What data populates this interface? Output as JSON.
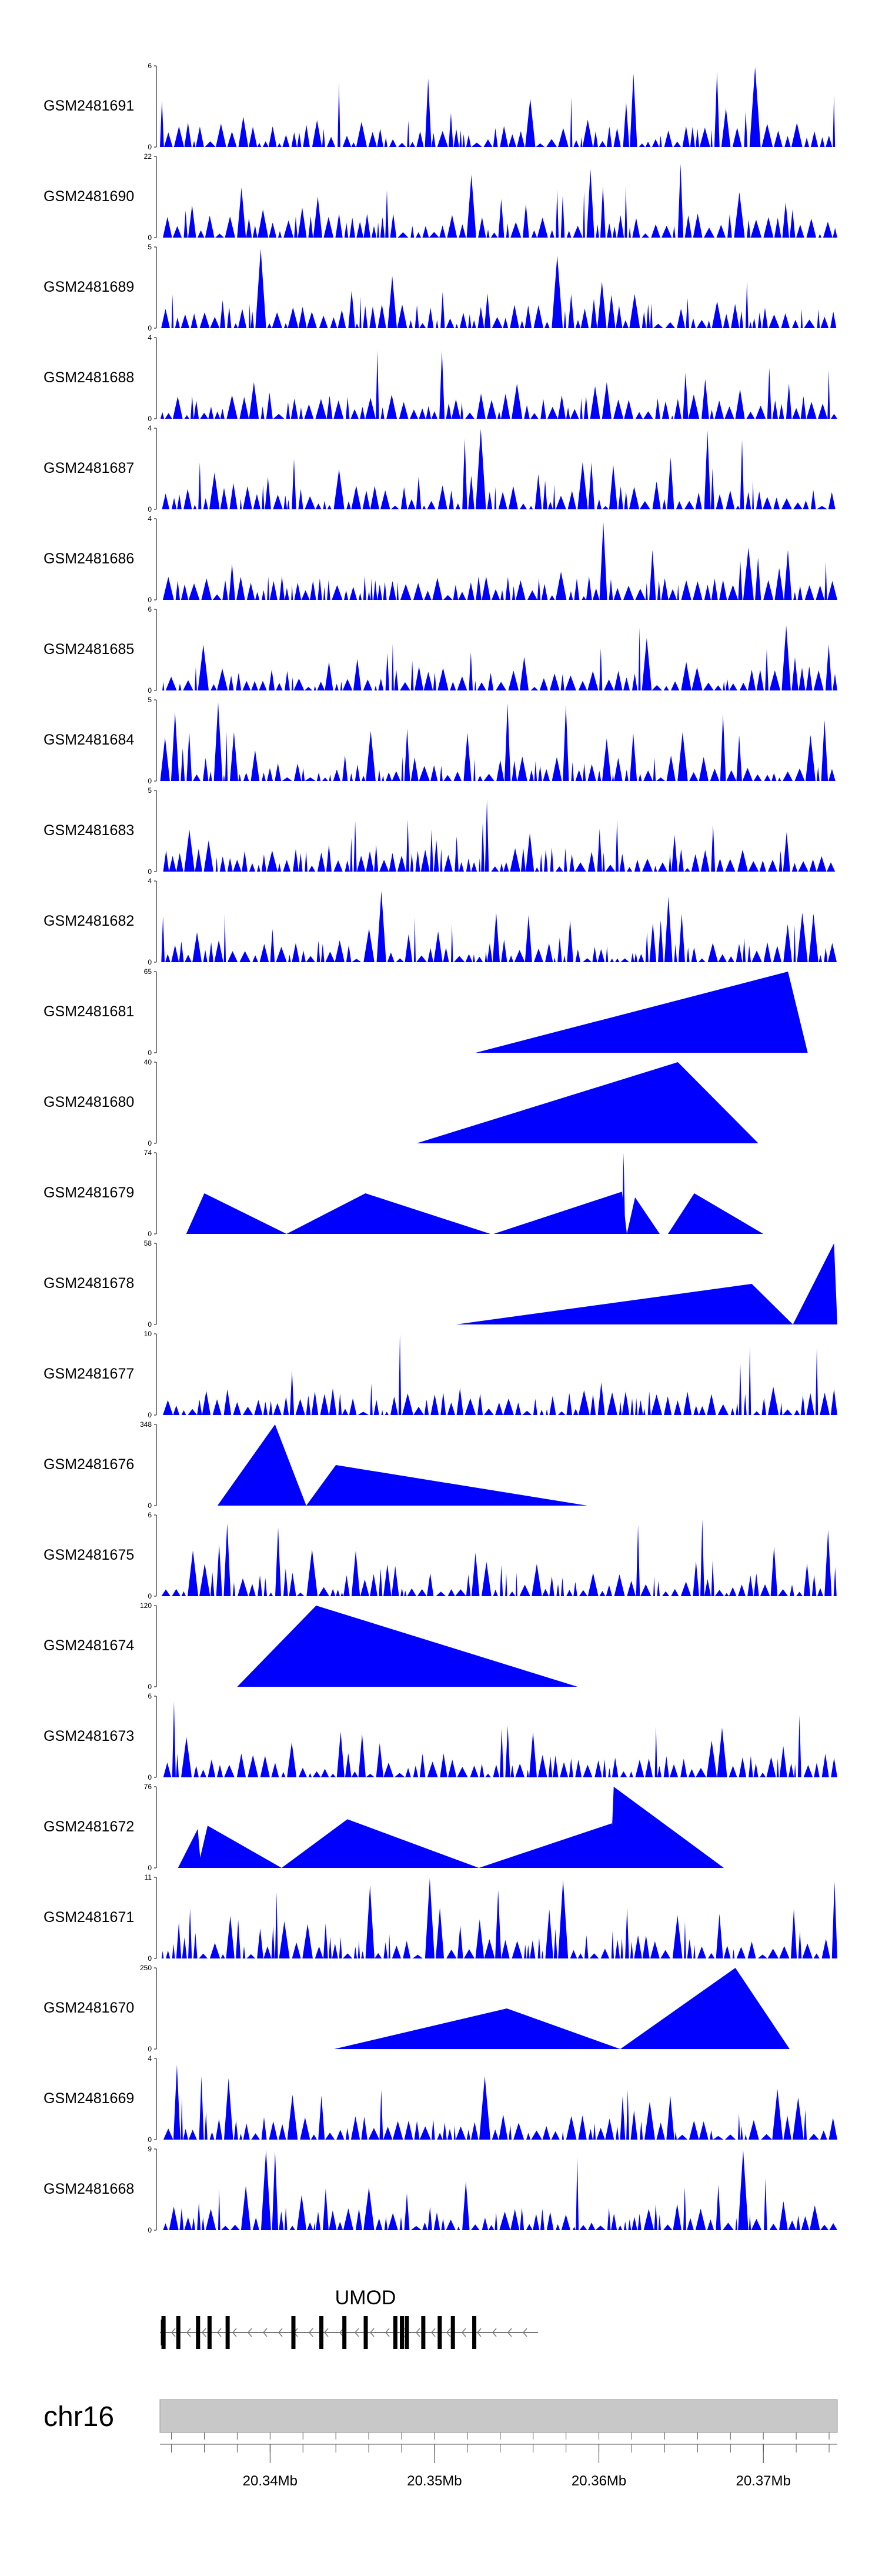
{
  "chart_data": {
    "type": "area",
    "title": "",
    "x_unit": "Mb",
    "xlim": [
      20.3333,
      20.3745
    ],
    "color": "#0000ff",
    "tracks": [
      {
        "name": "GSM2481691",
        "ymax": "6"
      },
      {
        "name": "GSM2481690",
        "ymax": "22"
      },
      {
        "name": "GSM2481689",
        "ymax": "5"
      },
      {
        "name": "GSM2481688",
        "ymax": "4"
      },
      {
        "name": "GSM2481687",
        "ymax": "4"
      },
      {
        "name": "GSM2481686",
        "ymax": "4"
      },
      {
        "name": "GSM2481685",
        "ymax": "6"
      },
      {
        "name": "GSM2481684",
        "ymax": "5"
      },
      {
        "name": "GSM2481683",
        "ymax": "5"
      },
      {
        "name": "GSM2481682",
        "ymax": "4"
      },
      {
        "name": "GSM2481681",
        "ymax": "65",
        "peaks": [
          [
            20.3525,
            20.3715,
            20.3727,
            1.0
          ]
        ]
      },
      {
        "name": "GSM2481680",
        "ymax": "40",
        "peaks": [
          [
            20.3489,
            20.3648,
            20.3697,
            1.0
          ]
        ]
      },
      {
        "name": "GSM2481679",
        "ymax": "74",
        "peaks": [
          [
            20.3349,
            20.336,
            20.341,
            0.5
          ],
          [
            20.341,
            20.3458,
            20.3534,
            0.5
          ],
          [
            20.3536,
            20.3614,
            20.3617,
            0.52
          ],
          [
            20.3614,
            20.3615,
            20.3616,
            1.0
          ],
          [
            20.3617,
            20.3622,
            20.3637,
            0.45
          ],
          [
            20.3642,
            20.3658,
            20.37,
            0.5
          ]
        ]
      },
      {
        "name": "GSM2481678",
        "ymax": "58",
        "peaks": [
          [
            20.3513,
            20.3693,
            20.3718,
            0.5
          ],
          [
            20.3718,
            20.3743,
            20.3745,
            1.0
          ]
        ]
      },
      {
        "name": "GSM2481677",
        "ymax": "10"
      },
      {
        "name": "GSM2481676",
        "ymax": "348",
        "peaks": [
          [
            20.3368,
            20.3403,
            20.3422,
            1.0
          ],
          [
            20.3422,
            20.344,
            20.3593,
            0.5
          ]
        ]
      },
      {
        "name": "GSM2481675",
        "ymax": "6"
      },
      {
        "name": "GSM2481674",
        "ymax": "120",
        "peaks": [
          [
            20.338,
            20.3428,
            20.3587,
            1.0
          ]
        ]
      },
      {
        "name": "GSM2481673",
        "ymax": "6"
      },
      {
        "name": "GSM2481672",
        "ymax": "76",
        "peaks": [
          [
            20.3344,
            20.3356,
            20.3358,
            0.48
          ],
          [
            20.3356,
            20.3362,
            20.3407,
            0.52
          ],
          [
            20.3407,
            20.3447,
            20.3527,
            0.6
          ],
          [
            20.3527,
            20.3608,
            20.3608,
            0.55
          ],
          [
            20.3607,
            20.3609,
            20.3676,
            1.0
          ]
        ]
      },
      {
        "name": "GSM2481671",
        "ymax": "11"
      },
      {
        "name": "GSM2481670",
        "ymax": "250",
        "peaks": [
          [
            20.3439,
            20.3544,
            20.3613,
            0.5
          ],
          [
            20.3613,
            20.3683,
            20.3716,
            1.0
          ]
        ]
      },
      {
        "name": "GSM2481669",
        "ymax": "4"
      },
      {
        "name": "GSM2481668",
        "ymax": "9"
      }
    ],
    "gene": {
      "name": "UMOD",
      "strand": "-",
      "start": 20.3333,
      "end": 20.3563,
      "exons": [
        20.3335,
        20.3344,
        20.3356,
        20.3363,
        20.3374,
        20.3414,
        20.3431,
        20.3445,
        20.3458,
        20.3476,
        20.348,
        20.3483,
        20.3493,
        20.3503,
        20.3511,
        20.3524
      ]
    },
    "chromosome": "chr16",
    "x_ticks": [
      {
        "value": 20.34,
        "label": "20.34Mb"
      },
      {
        "value": 20.35,
        "label": "20.35Mb"
      },
      {
        "value": 20.36,
        "label": "20.36Mb"
      },
      {
        "value": 20.37,
        "label": "20.37Mb"
      }
    ],
    "minor_tick_step": 0.002
  }
}
